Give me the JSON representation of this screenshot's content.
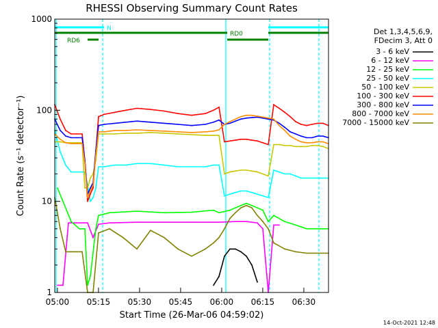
{
  "chart_data": {
    "type": "line",
    "title": "RHESSI Observing Summary Count Rates",
    "xlabel": "Start Time (26-Mar-06 04:59:02)",
    "ylabel": "Count Rate (s⁻¹ detector⁻¹)",
    "ylog": true,
    "ylim": [
      1,
      1000
    ],
    "xlim_minutes": [
      0,
      100
    ],
    "x_tick_labels": [
      "05:00",
      "05:15",
      "05:30",
      "05:45",
      "06:00",
      "06:15",
      "06:30"
    ],
    "x_tick_minutes": [
      0.98,
      15.98,
      30.98,
      45.98,
      60.98,
      75.98,
      90.98
    ],
    "y_tick_labels": [
      "1",
      "10",
      "100",
      "1000"
    ],
    "y_tick_values": [
      1,
      10,
      100,
      1000
    ],
    "legend_position": "right",
    "legend_header": [
      "Det 1,3,4,5,6,9,",
      "FDecim 3, Att 0"
    ],
    "series": [
      {
        "name": "3 - 6 keV",
        "color": "#000000",
        "x": [
          58,
          60,
          62,
          64,
          66,
          68,
          70,
          72,
          74
        ],
        "y": [
          1.2,
          1.5,
          2.5,
          3.0,
          3.0,
          2.8,
          2.5,
          2.0,
          1.3
        ]
      },
      {
        "name": "6 - 12 keV",
        "color": "#ff00ff",
        "x": [
          1,
          3,
          5,
          8,
          12,
          14,
          16,
          20,
          30,
          40,
          50,
          58,
          60,
          66,
          70,
          74,
          76,
          78,
          80,
          82
        ],
        "y": [
          1.2,
          1.2,
          5.8,
          5.8,
          5.8,
          4.0,
          5.6,
          5.8,
          5.9,
          5.9,
          5.9,
          5.9,
          5.9,
          6.0,
          6.0,
          5.8,
          5.0,
          1.0,
          5.5,
          5.5
        ]
      },
      {
        "name": "12 - 25 keV",
        "color": "#00ff00",
        "x": [
          1,
          3,
          6,
          9,
          11,
          12,
          13,
          15,
          16,
          20,
          30,
          40,
          50,
          58,
          60,
          64,
          66,
          68,
          70,
          72,
          74,
          76,
          78,
          80,
          84,
          88,
          92,
          96,
          100
        ],
        "y": [
          14,
          10,
          6,
          5,
          5,
          1.2,
          1.5,
          5,
          7,
          7.5,
          7.8,
          7.5,
          7.6,
          8.0,
          7.5,
          8,
          8.5,
          9,
          9.5,
          9,
          8.5,
          8,
          6,
          7,
          6,
          5.5,
          5,
          5,
          5
        ]
      },
      {
        "name": "25 - 50 keV",
        "color": "#00ffff",
        "x": [
          0,
          2,
          4,
          6,
          8,
          10,
          11,
          12,
          13,
          14,
          15,
          16,
          18,
          22,
          26,
          30,
          35,
          40,
          45,
          50,
          55,
          58,
          60,
          62,
          64,
          66,
          68,
          70,
          72,
          74,
          76,
          78,
          80,
          82,
          84,
          86,
          88,
          90,
          92,
          94,
          96,
          98,
          100
        ],
        "y": [
          60,
          35,
          25,
          21,
          21,
          21,
          21,
          15,
          10,
          11,
          14,
          24,
          24,
          25,
          25,
          26,
          26,
          25,
          24,
          24,
          24,
          25,
          25,
          11.5,
          12,
          12.5,
          13,
          13,
          12.5,
          12,
          11.5,
          11,
          22,
          21,
          20,
          20,
          19,
          18,
          18,
          18,
          18,
          18,
          18
        ]
      },
      {
        "name": "50 - 100 keV",
        "color": "#c8c800",
        "x": [
          0,
          2,
          4,
          6,
          8,
          10,
          11,
          12,
          13,
          14,
          15,
          16,
          18,
          22,
          26,
          30,
          35,
          40,
          45,
          50,
          55,
          58,
          60,
          62,
          64,
          66,
          68,
          70,
          72,
          74,
          76,
          78,
          80,
          82,
          84,
          86,
          88,
          90,
          92,
          94,
          96,
          98,
          100
        ],
        "y": [
          45,
          45,
          44,
          44,
          44,
          44,
          14,
          14,
          18,
          20,
          28,
          55,
          55,
          55,
          56,
          56,
          57,
          56,
          55,
          54,
          53,
          53,
          53,
          20,
          21,
          21.5,
          22,
          22,
          21.5,
          21,
          20,
          19,
          42,
          42,
          41,
          41,
          40,
          40,
          40,
          41,
          41,
          40,
          38
        ]
      },
      {
        "name": "100 - 300 keV",
        "color": "#ff0000",
        "x": [
          0,
          2,
          4,
          6,
          8,
          10,
          11,
          12,
          13,
          14,
          15,
          16,
          18,
          22,
          26,
          30,
          35,
          40,
          45,
          50,
          55,
          58,
          60,
          62,
          64,
          66,
          68,
          70,
          72,
          74,
          76,
          78,
          80,
          82,
          84,
          86,
          88,
          90,
          92,
          94,
          96,
          98,
          100
        ],
        "y": [
          115,
          80,
          60,
          55,
          55,
          55,
          28,
          10,
          12,
          14,
          35,
          85,
          90,
          95,
          100,
          105,
          102,
          98,
          92,
          88,
          92,
          100,
          108,
          45,
          46,
          47,
          48,
          48,
          47,
          46,
          44,
          42,
          115,
          105,
          95,
          85,
          75,
          70,
          68,
          70,
          72,
          72,
          68
        ]
      },
      {
        "name": "300 - 800 keV",
        "color": "#0000ff",
        "x": [
          0,
          2,
          4,
          6,
          8,
          10,
          11,
          12,
          13,
          14,
          15,
          16,
          18,
          22,
          26,
          30,
          35,
          40,
          45,
          50,
          55,
          58,
          60,
          62,
          64,
          66,
          68,
          70,
          72,
          74,
          76,
          78,
          80,
          82,
          84,
          86,
          88,
          90,
          92,
          94,
          96,
          98,
          100
        ],
        "y": [
          80,
          60,
          52,
          50,
          50,
          50,
          28,
          12,
          14,
          16,
          36,
          68,
          70,
          72,
          74,
          76,
          74,
          72,
          70,
          68,
          70,
          74,
          78,
          70,
          72,
          76,
          80,
          82,
          83,
          84,
          82,
          80,
          78,
          72,
          65,
          58,
          55,
          52,
          50,
          50,
          52,
          52,
          50
        ]
      },
      {
        "name": "800 - 7000 keV",
        "color": "#ff8c00",
        "x": [
          0,
          2,
          4,
          6,
          8,
          10,
          11,
          12,
          13,
          14,
          15,
          16,
          18,
          22,
          26,
          30,
          35,
          40,
          45,
          50,
          55,
          58,
          60,
          62,
          64,
          66,
          68,
          70,
          72,
          74,
          76,
          78,
          80,
          82,
          84,
          86,
          88,
          90,
          92,
          94,
          96,
          98,
          100
        ],
        "y": [
          55,
          48,
          44,
          43,
          43,
          43,
          26,
          11,
          13,
          15,
          32,
          58,
          58,
          60,
          60,
          61,
          60,
          59,
          58,
          57,
          58,
          59,
          61,
          70,
          75,
          80,
          85,
          88,
          88,
          86,
          84,
          82,
          80,
          68,
          60,
          52,
          48,
          45,
          44,
          44,
          45,
          45,
          43
        ]
      },
      {
        "name": "7000 - 15000 keV",
        "color": "#808000",
        "x": [
          0,
          2,
          4,
          6,
          8,
          10,
          12,
          14,
          16,
          20,
          25,
          30,
          35,
          40,
          45,
          50,
          55,
          58,
          60,
          62,
          64,
          66,
          68,
          70,
          72,
          74,
          76,
          78,
          80,
          84,
          88,
          92,
          96,
          100
        ],
        "y": [
          11,
          5,
          2.8,
          2.8,
          2.8,
          2.8,
          1.0,
          1.0,
          4.5,
          5.0,
          4.0,
          3.0,
          4.8,
          4.0,
          3.0,
          2.5,
          3.0,
          3.5,
          4.0,
          5.0,
          6.5,
          7.5,
          8.5,
          9.0,
          8.5,
          7.0,
          6.0,
          5.0,
          3.5,
          3.0,
          2.8,
          2.7,
          2.7,
          2.7
        ]
      }
    ],
    "state_bars": [
      {
        "label": "N",
        "color": "#00ffff",
        "segments": [
          [
            0,
            18
          ],
          [
            78,
            100
          ]
        ]
      },
      {
        "label": "RD0",
        "color": "#008000",
        "segments": [
          [
            0,
            63
          ],
          [
            78,
            100
          ]
        ]
      },
      {
        "label": "",
        "color": "#008000",
        "segments": [
          [
            63,
            78
          ]
        ]
      },
      {
        "label": "RD6",
        "color": "#008000",
        "segments": [
          [
            12,
            16
          ]
        ]
      }
    ],
    "vertical_markers": [
      {
        "minute": 0.5,
        "style": "solid",
        "color": "#00ffff"
      },
      {
        "minute": 17.5,
        "style": "dashed",
        "color": "#00ffff"
      },
      {
        "minute": 62.5,
        "style": "solid",
        "color": "#00ffff"
      },
      {
        "minute": 78.5,
        "style": "dashed",
        "color": "#00ffff"
      },
      {
        "minute": 96.5,
        "style": "dashed",
        "color": "#00ffff"
      }
    ],
    "footer_timestamp": "14-Oct-2021 12:48"
  }
}
